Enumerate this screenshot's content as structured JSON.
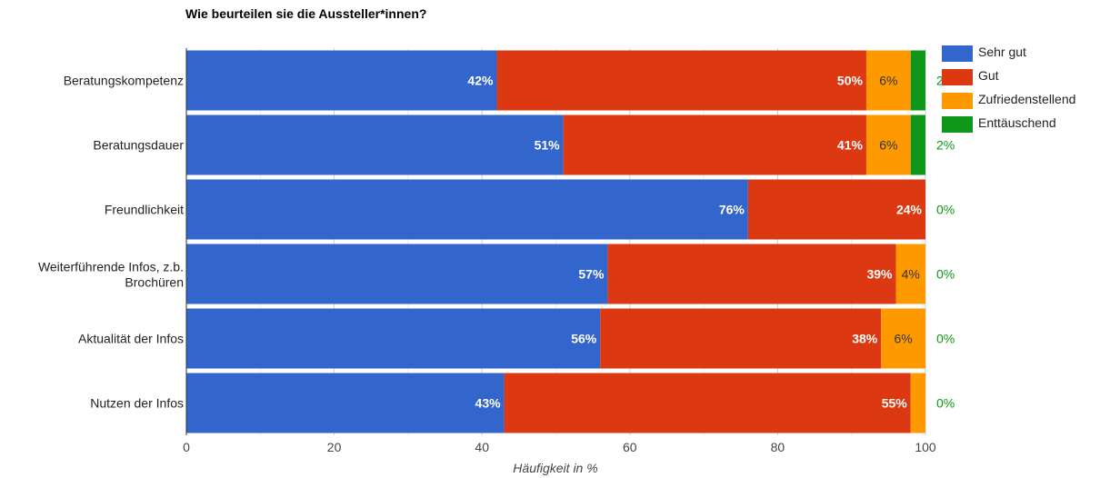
{
  "chart_data": {
    "type": "bar",
    "orientation": "horizontal",
    "stacked": true,
    "title": "Wie beurteilen sie die Aussteller*innen?",
    "xlabel": "Häufigkeit in %",
    "ylabel": "",
    "xlim": [
      0,
      100
    ],
    "xticks": [
      0,
      20,
      40,
      60,
      80,
      100
    ],
    "grid": true,
    "legend_position": "right",
    "categories": [
      "Beratungskompetenz",
      "Beratungsdauer",
      "Freundlichkeit",
      "Weiterführende Infos, z.b. Brochüren",
      "Aktualität der Infos",
      "Nutzen der Infos"
    ],
    "series": [
      {
        "name": "Sehr gut",
        "color": "#3366cc",
        "values": [
          42,
          51,
          76,
          57,
          56,
          43
        ],
        "labels": [
          "42%",
          "51%",
          "76%",
          "57%",
          "56%",
          "43%"
        ]
      },
      {
        "name": "Gut",
        "color": "#dc3912",
        "values": [
          50,
          41,
          24,
          39,
          38,
          55
        ],
        "labels": [
          "50%",
          "41%",
          "24%",
          "39%",
          "38%",
          "55%"
        ]
      },
      {
        "name": "Zufriedenstellend",
        "color": "#ff9900",
        "values": [
          6,
          6,
          0,
          4,
          6,
          2
        ],
        "labels": [
          "6%",
          "6%",
          "",
          "4%",
          "6%",
          ""
        ]
      },
      {
        "name": "Enttäuschend",
        "color": "#109618",
        "values": [
          2,
          2,
          0,
          0,
          0,
          0
        ],
        "labels": [
          "2%",
          "2%",
          "0%",
          "0%",
          "0%",
          "0%"
        ]
      }
    ]
  }
}
